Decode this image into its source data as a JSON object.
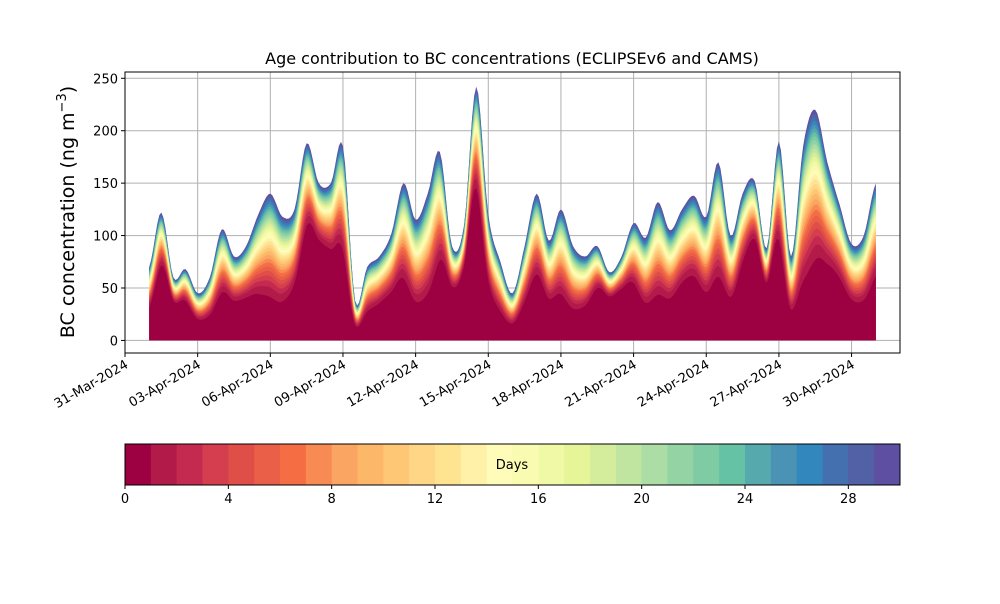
{
  "chart_data": {
    "type": "area",
    "title": "Age contribution to BC concentrations (ECLIPSEv6 and CAMS)",
    "ylabel": "BC concentration (ng m",
    "ylabel_unit_superscript": "−3",
    "ylabel_suffix": ")",
    "xlabel": "",
    "ylim": [
      -12,
      256
    ],
    "yticks": [
      0,
      50,
      100,
      150,
      200,
      250
    ],
    "xlim": [
      "2024-03-31",
      "2024-05-02"
    ],
    "xticks": [
      "31-Mar-2024",
      "03-Apr-2024",
      "06-Apr-2024",
      "09-Apr-2024",
      "12-Apr-2024",
      "15-Apr-2024",
      "18-Apr-2024",
      "21-Apr-2024",
      "24-Apr-2024",
      "27-Apr-2024",
      "30-Apr-2024"
    ],
    "grid": true,
    "series_description": "stacked contributions by age (days 0-30) to total BC concentration",
    "total_series": {
      "x": [
        "2024-04-01",
        "2024-04-01T12",
        "2024-04-02",
        "2024-04-02T12",
        "2024-04-03",
        "2024-04-03T12",
        "2024-04-04",
        "2024-04-04T12",
        "2024-04-05",
        "2024-04-05T12",
        "2024-04-06",
        "2024-04-06T12",
        "2024-04-07",
        "2024-04-07T12",
        "2024-04-08",
        "2024-04-08T12",
        "2024-04-09",
        "2024-04-09T12",
        "2024-04-10",
        "2024-04-10T12",
        "2024-04-11",
        "2024-04-11T12",
        "2024-04-12",
        "2024-04-12T12",
        "2024-04-13",
        "2024-04-13T12",
        "2024-04-14",
        "2024-04-14T12",
        "2024-04-15",
        "2024-04-15T12",
        "2024-04-16",
        "2024-04-16T12",
        "2024-04-17",
        "2024-04-17T12",
        "2024-04-18",
        "2024-04-18T12",
        "2024-04-19",
        "2024-04-19T12",
        "2024-04-20",
        "2024-04-20T12",
        "2024-04-21",
        "2024-04-21T12",
        "2024-04-22",
        "2024-04-22T12",
        "2024-04-23",
        "2024-04-23T12",
        "2024-04-24",
        "2024-04-24T12",
        "2024-04-25",
        "2024-04-25T12",
        "2024-04-26",
        "2024-04-26T12",
        "2024-04-27",
        "2024-04-27T12",
        "2024-04-28",
        "2024-04-28T12",
        "2024-04-29",
        "2024-04-29T12",
        "2024-04-30",
        "2024-04-30T12",
        "2024-05-01"
      ],
      "y": [
        70,
        122,
        60,
        68,
        45,
        60,
        106,
        80,
        90,
        120,
        140,
        118,
        125,
        188,
        150,
        150,
        185,
        38,
        70,
        80,
        102,
        150,
        115,
        140,
        180,
        90,
        110,
        242,
        120,
        75,
        45,
        90,
        140,
        95,
        125,
        90,
        80,
        90,
        65,
        80,
        112,
        98,
        132,
        105,
        125,
        138,
        118,
        170,
        100,
        140,
        152,
        88,
        190,
        80,
        185,
        220,
        170,
        130,
        92,
        100,
        150
      ]
    },
    "colorbar": {
      "label": "Days",
      "range": [
        0,
        30
      ],
      "ticks": [
        0,
        4,
        8,
        12,
        16,
        20,
        24,
        28
      ],
      "levels": 30,
      "colormap": "Spectral",
      "colors": [
        "#9e0142",
        "#b21a4a",
        "#c42a4f",
        "#d53e4f",
        "#e04e48",
        "#ea5f47",
        "#f46d43",
        "#f88a53",
        "#fba562",
        "#fdb768",
        "#fdc776",
        "#fed686",
        "#fee491",
        "#fff1a8",
        "#fffbb8",
        "#f9fbb0",
        "#f0f9a5",
        "#e6f598",
        "#d3ed9c",
        "#bfe5a0",
        "#abdda4",
        "#94d4a4",
        "#7ecba4",
        "#66c2a5",
        "#56aaad",
        "#4a93b5",
        "#3288bd",
        "#4470b0",
        "#5260a5",
        "#5e4fa2"
      ]
    }
  }
}
